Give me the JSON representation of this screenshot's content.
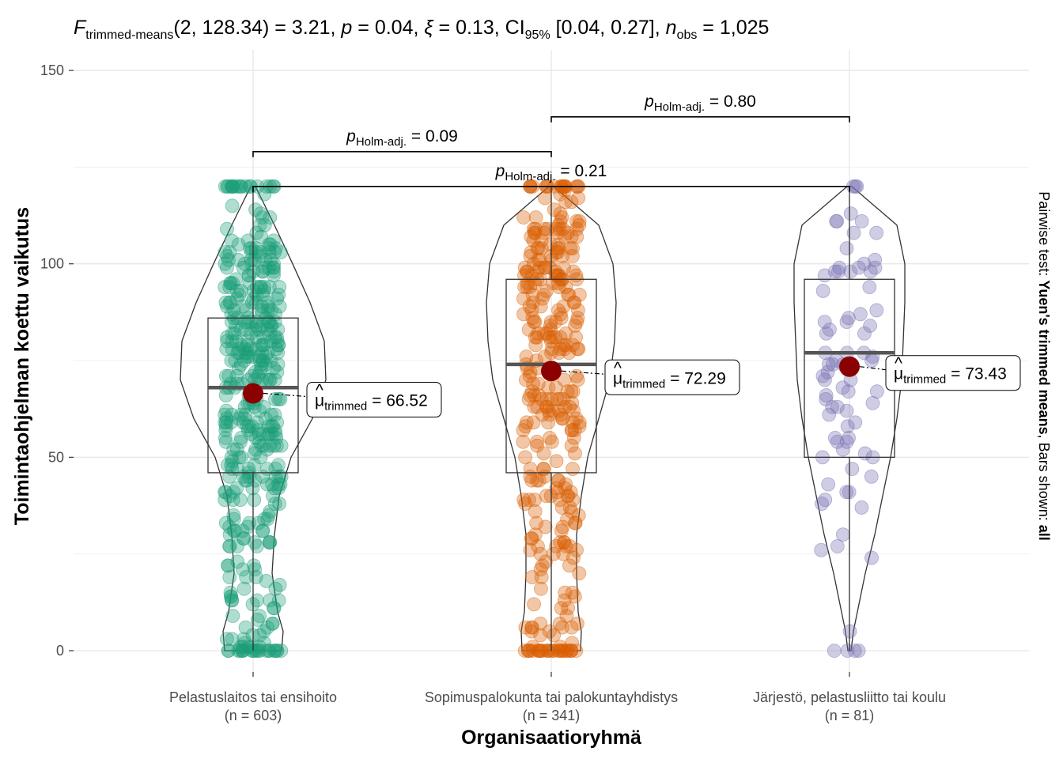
{
  "chart_data": {
    "type": "violin-box-scatter",
    "title": {
      "stat_symbol": "F",
      "stat_subscript": "trimmed-means",
      "df": "(2, 128.34)",
      "stat_value": "3.21",
      "p_symbol": "p",
      "p_value": "0.04",
      "effect_symbol": "ξ",
      "effect_value": "0.13",
      "ci_label": "CI",
      "ci_subscript": "95%",
      "ci_value": "[0.04, 0.27]",
      "n_symbol": "n",
      "n_subscript": "obs",
      "n_value": "1,025"
    },
    "xlabel": "Organisaatioryhmä",
    "ylabel": "Toimintaohjelman koettu vaikutus",
    "side_caption": {
      "prefix": "Pairwise test: ",
      "test": "Yuen's trimmed means",
      "middle": ", Bars shown: ",
      "bars": "all"
    },
    "ylim": [
      -6,
      150
    ],
    "yticks": [
      0,
      50,
      100,
      150
    ],
    "grid": true,
    "groups": [
      {
        "label": "Pelastuslaitos tai ensihoito",
        "n_label": "(n = 603)",
        "n": 603,
        "color": "#1B9E77",
        "box": {
          "min": 0,
          "q1": 46,
          "median": 68,
          "q3": 86,
          "max": 120
        },
        "trimmed_mean": 66.52,
        "trimmed_label": "66.52"
      },
      {
        "label": "Sopimuspalokunta tai palokuntayhdistys",
        "n_label": "(n = 341)",
        "n": 341,
        "color": "#D95F02",
        "box": {
          "min": 0,
          "q1": 46,
          "median": 74,
          "q3": 96,
          "max": 120
        },
        "trimmed_mean": 72.29,
        "trimmed_label": "72.29"
      },
      {
        "label": "Järjestö, pelastusliitto tai koulu",
        "n_label": "(n = 81)",
        "n": 81,
        "color": "#7570B3",
        "box": {
          "min": 0,
          "q1": 50,
          "median": 77,
          "q3": 96,
          "max": 120
        },
        "trimmed_mean": 73.43,
        "trimmed_label": "73.43"
      }
    ],
    "mean_label": {
      "symbol": "μ",
      "subscript": "trimmed"
    },
    "comparisons": [
      {
        "from": 1,
        "to": 2,
        "y": 138,
        "label": "p",
        "subscript": "Holm-adj.",
        "value": "0.80"
      },
      {
        "from": 0,
        "to": 1,
        "y": 129,
        "label": "p",
        "subscript": "Holm-adj.",
        "value": "0.09"
      },
      {
        "from": 0,
        "to": 2,
        "y": 120,
        "label": "p",
        "subscript": "Holm-adj.",
        "value": "0.21"
      }
    ],
    "mean_color": "#8B0000"
  }
}
